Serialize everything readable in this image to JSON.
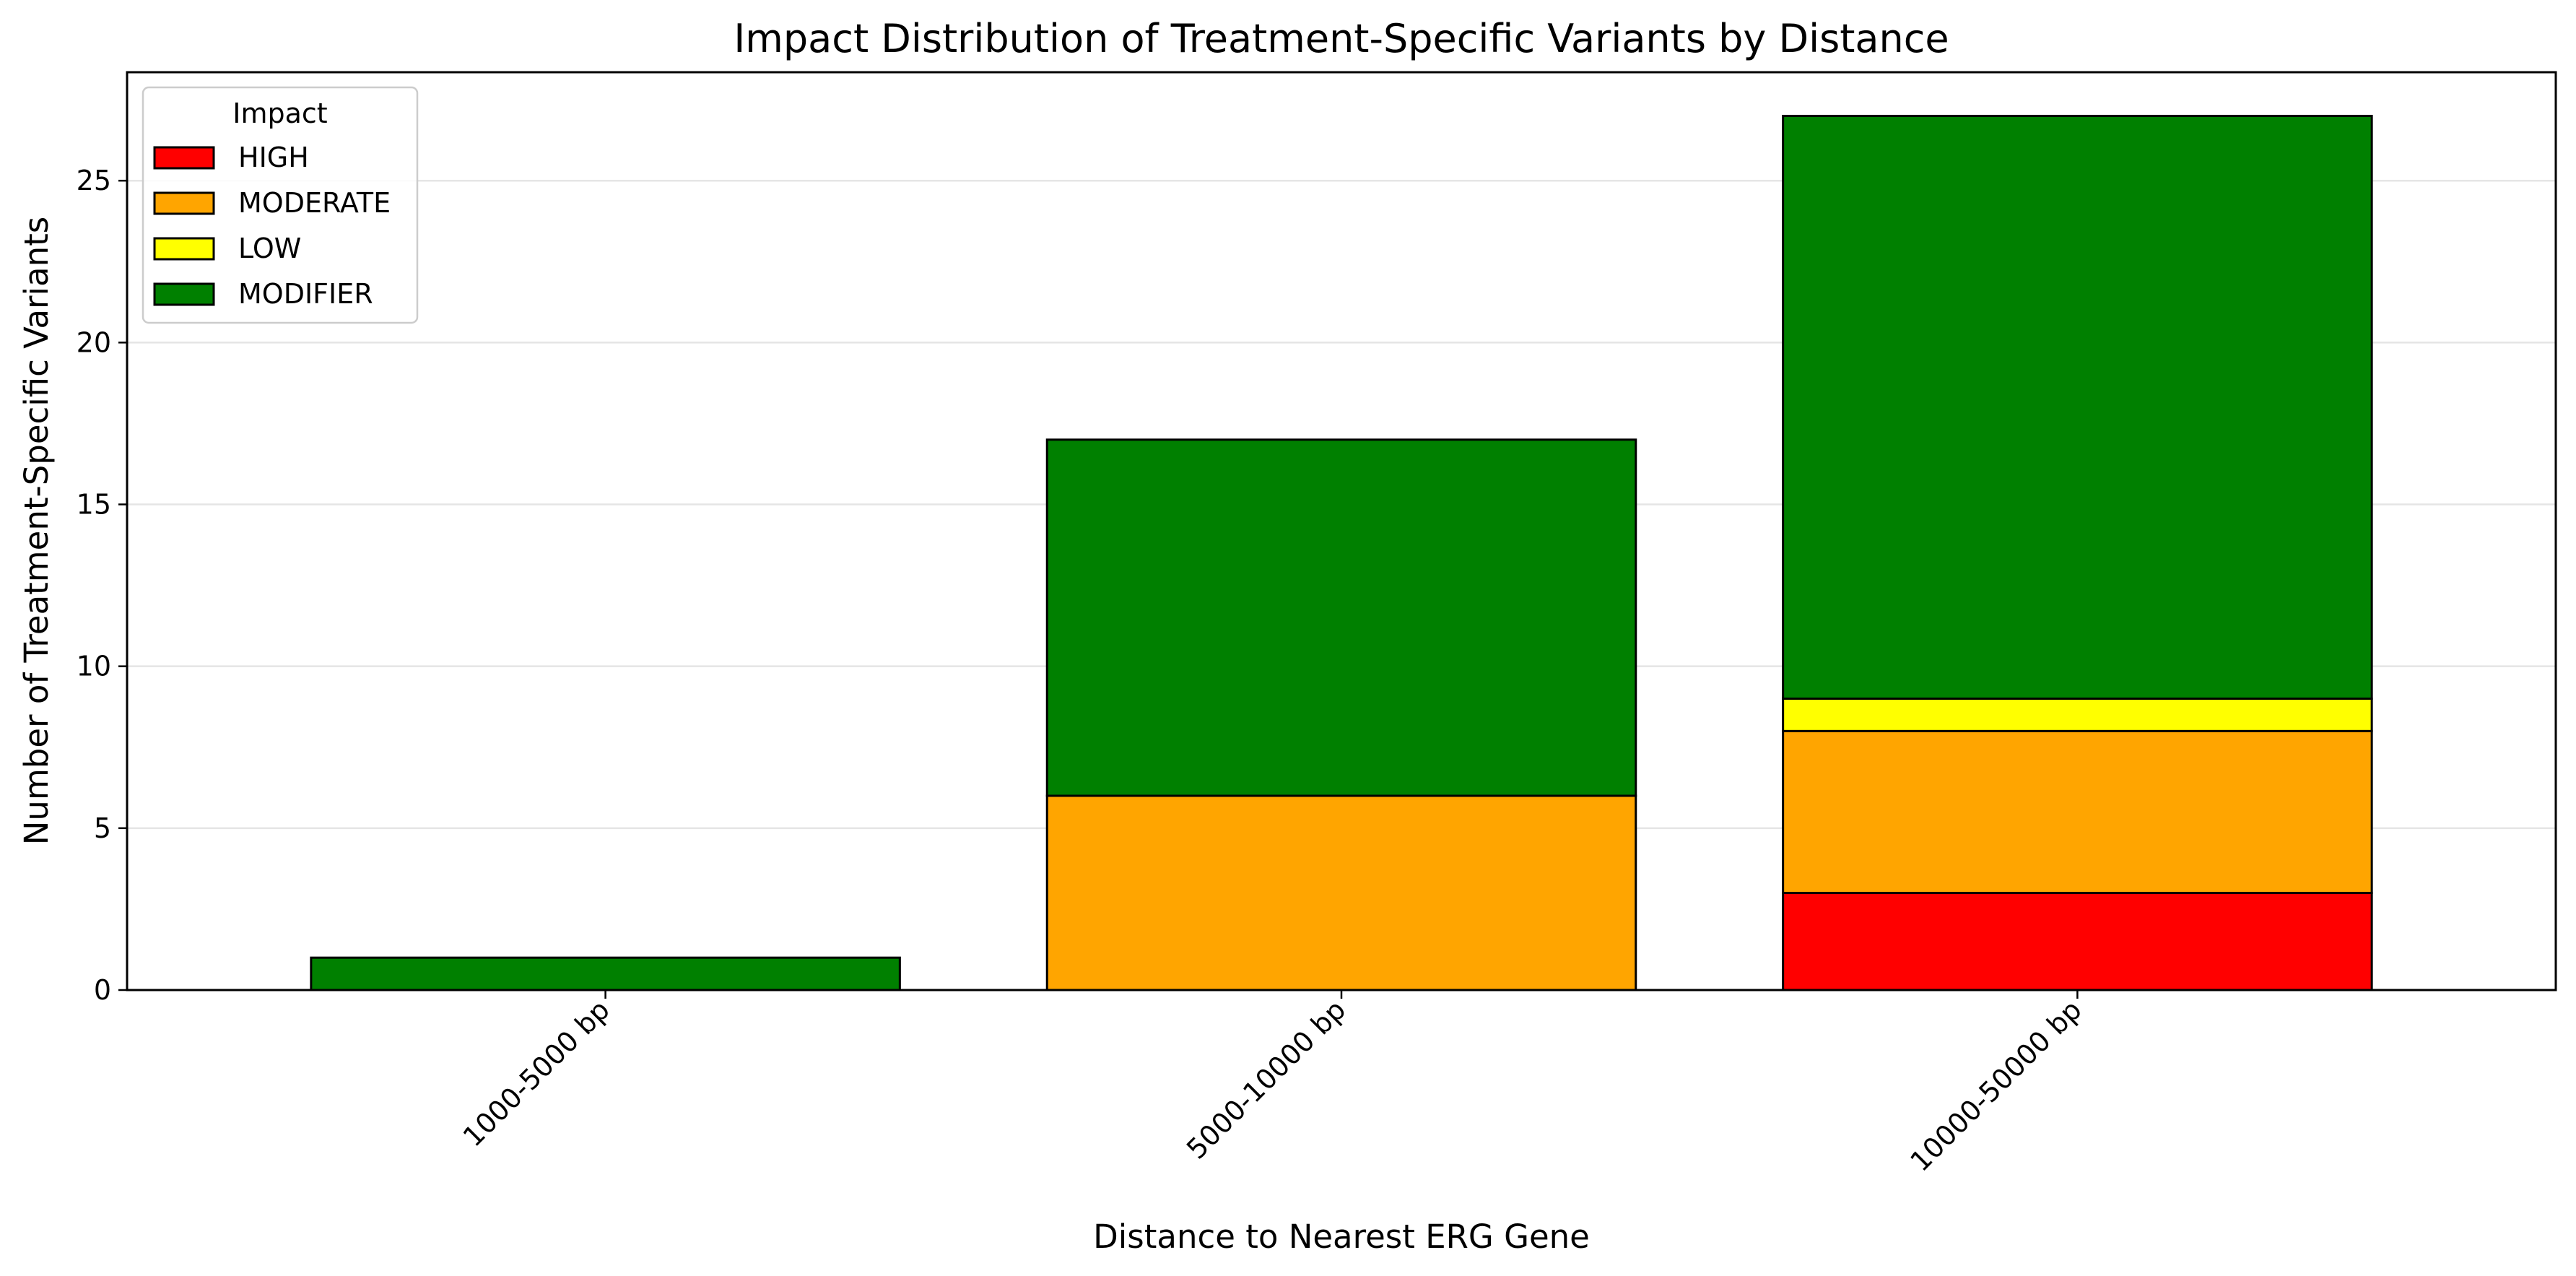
{
  "chart_data": {
    "type": "bar",
    "stacked": true,
    "title": "Impact Distribution of Treatment-Specific Variants by Distance",
    "xlabel": "Distance to Nearest ERG Gene",
    "ylabel": "Number of Treatment-Specific Variants",
    "categories": [
      "1000-5000 bp",
      "5000-10000 bp",
      "10000-50000 bp"
    ],
    "series": [
      {
        "name": "HIGH",
        "color": "#ff0000",
        "values": [
          0,
          0,
          3
        ]
      },
      {
        "name": "MODERATE",
        "color": "#ffa500",
        "values": [
          0,
          6,
          5
        ]
      },
      {
        "name": "LOW",
        "color": "#ffff00",
        "values": [
          0,
          0,
          1
        ]
      },
      {
        "name": "MODIFIER",
        "color": "#008000",
        "values": [
          1,
          11,
          18
        ]
      }
    ],
    "ylim": [
      0,
      28.35
    ],
    "yticks": [
      0,
      5,
      10,
      15,
      20,
      25
    ],
    "grid": "y",
    "legend": {
      "title": "Impact",
      "placement": "top-left"
    }
  }
}
